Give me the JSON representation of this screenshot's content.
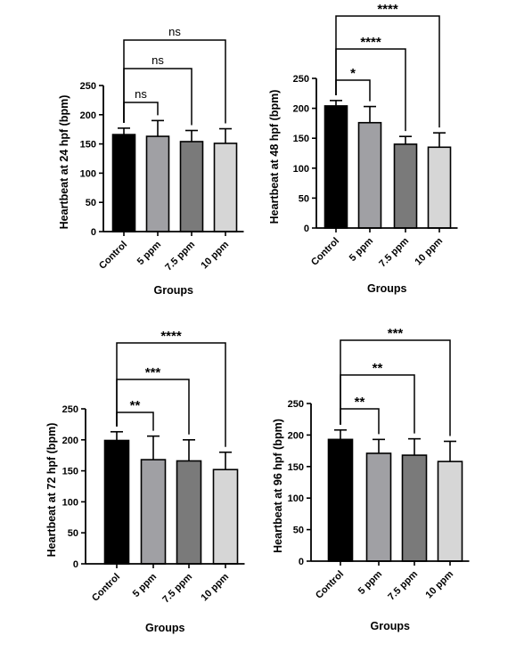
{
  "chart_data": [
    {
      "type": "bar",
      "categories": [
        "Control",
        "5 ppm",
        "7.5 ppm",
        "10 ppm"
      ],
      "values": [
        166,
        163,
        154,
        151
      ],
      "errors": [
        11,
        27,
        19,
        25
      ],
      "colors": [
        "#000000",
        "#a0a0a4",
        "#7a7a7a",
        "#d6d6d6"
      ],
      "title": "",
      "xlabel": "Groups",
      "ylabel": "Heartbeat at 24 hpf (bpm)",
      "ylim": [
        0,
        250
      ],
      "yticks": [
        0,
        50,
        100,
        150,
        200,
        250
      ],
      "grid": false,
      "comparisons": [
        {
          "from": "Control",
          "to": "5 ppm",
          "label": "ns"
        },
        {
          "from": "Control",
          "to": "7.5 ppm",
          "label": "ns"
        },
        {
          "from": "Control",
          "to": "10 ppm",
          "label": "ns"
        }
      ]
    },
    {
      "type": "bar",
      "categories": [
        "Control",
        "5 ppm",
        "7.5 ppm",
        "10 ppm"
      ],
      "values": [
        204,
        176,
        140,
        135
      ],
      "errors": [
        9,
        27,
        13,
        24
      ],
      "colors": [
        "#000000",
        "#a0a0a4",
        "#7a7a7a",
        "#d6d6d6"
      ],
      "title": "",
      "xlabel": "Groups",
      "ylabel": "Heartbeat at 48 hpf (bpm)",
      "ylim": [
        0,
        250
      ],
      "yticks": [
        0,
        50,
        100,
        150,
        200,
        250
      ],
      "grid": false,
      "comparisons": [
        {
          "from": "Control",
          "to": "5 ppm",
          "label": "*"
        },
        {
          "from": "Control",
          "to": "7.5 ppm",
          "label": "****"
        },
        {
          "from": "Control",
          "to": "10 ppm",
          "label": "****"
        }
      ]
    },
    {
      "type": "bar",
      "categories": [
        "Control",
        "5 ppm",
        "7.5 ppm",
        "10 ppm"
      ],
      "values": [
        199,
        168,
        166,
        152
      ],
      "errors": [
        14,
        38,
        34,
        28
      ],
      "colors": [
        "#000000",
        "#a0a0a4",
        "#7a7a7a",
        "#d6d6d6"
      ],
      "title": "",
      "xlabel": "Groups",
      "ylabel": "Heartbeat at 72 hpf (bpm)",
      "ylim": [
        0,
        250
      ],
      "yticks": [
        0,
        50,
        100,
        150,
        200,
        250
      ],
      "grid": false,
      "comparisons": [
        {
          "from": "Control",
          "to": "5 ppm",
          "label": "**"
        },
        {
          "from": "Control",
          "to": "7.5 ppm",
          "label": "***"
        },
        {
          "from": "Control",
          "to": "10 ppm",
          "label": "****"
        }
      ]
    },
    {
      "type": "bar",
      "categories": [
        "Control",
        "5 ppm",
        "7.5 ppm",
        "10 ppm"
      ],
      "values": [
        193,
        171,
        168,
        158
      ],
      "errors": [
        15,
        22,
        26,
        32
      ],
      "colors": [
        "#000000",
        "#a0a0a4",
        "#7a7a7a",
        "#d6d6d6"
      ],
      "title": "",
      "xlabel": "Groups",
      "ylabel": "Heartbeat at 96 hpf (bpm)",
      "ylim": [
        0,
        250
      ],
      "yticks": [
        0,
        50,
        100,
        150,
        200,
        250
      ],
      "grid": false,
      "comparisons": [
        {
          "from": "Control",
          "to": "5 ppm",
          "label": "**"
        },
        {
          "from": "Control",
          "to": "7.5 ppm",
          "label": "**"
        },
        {
          "from": "Control",
          "to": "10 ppm",
          "label": "***"
        }
      ]
    }
  ]
}
